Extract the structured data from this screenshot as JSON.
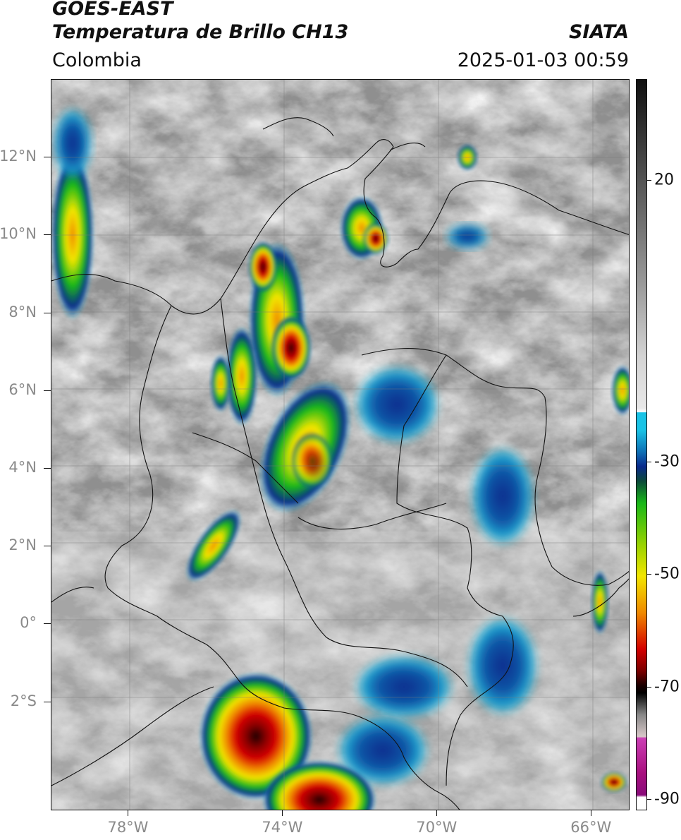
{
  "header": {
    "satellite": "GOES-EAST",
    "product": "Temperatura de Brillo CH13",
    "region": "Colombia",
    "organization": "SIATA",
    "timestamp": "2025-01-03 00:59"
  },
  "map": {
    "latitude_ticks": [
      "12°N",
      "10°N",
      "8°N",
      "6°N",
      "4°N",
      "2°N",
      "0°",
      "2°S"
    ],
    "longitude_ticks": [
      "78°W",
      "74°W",
      "70°W",
      "66°W"
    ],
    "lon_range": [
      -80,
      -65
    ],
    "lat_range": [
      -4.8,
      14
    ],
    "gridlines": true
  },
  "colorbar": {
    "tick_labels": [
      "20",
      "-30",
      "-50",
      "-70",
      "-90"
    ],
    "tick_values": [
      20,
      -30,
      -50,
      -70,
      -90
    ],
    "range": [
      -92,
      38
    ],
    "colors": {
      "warm_gray_top": "#111111",
      "gray_mid": "#e8e8e8",
      "cyan": "#19c3e6",
      "blue": "#0a2a8c",
      "green": "#18b818",
      "yellow": "#f2e600",
      "orange": "#f08a00",
      "red": "#d40000",
      "dark": "#1a0000",
      "magenta": "#cc3fb5",
      "white_bottom": "#ffffff"
    }
  }
}
